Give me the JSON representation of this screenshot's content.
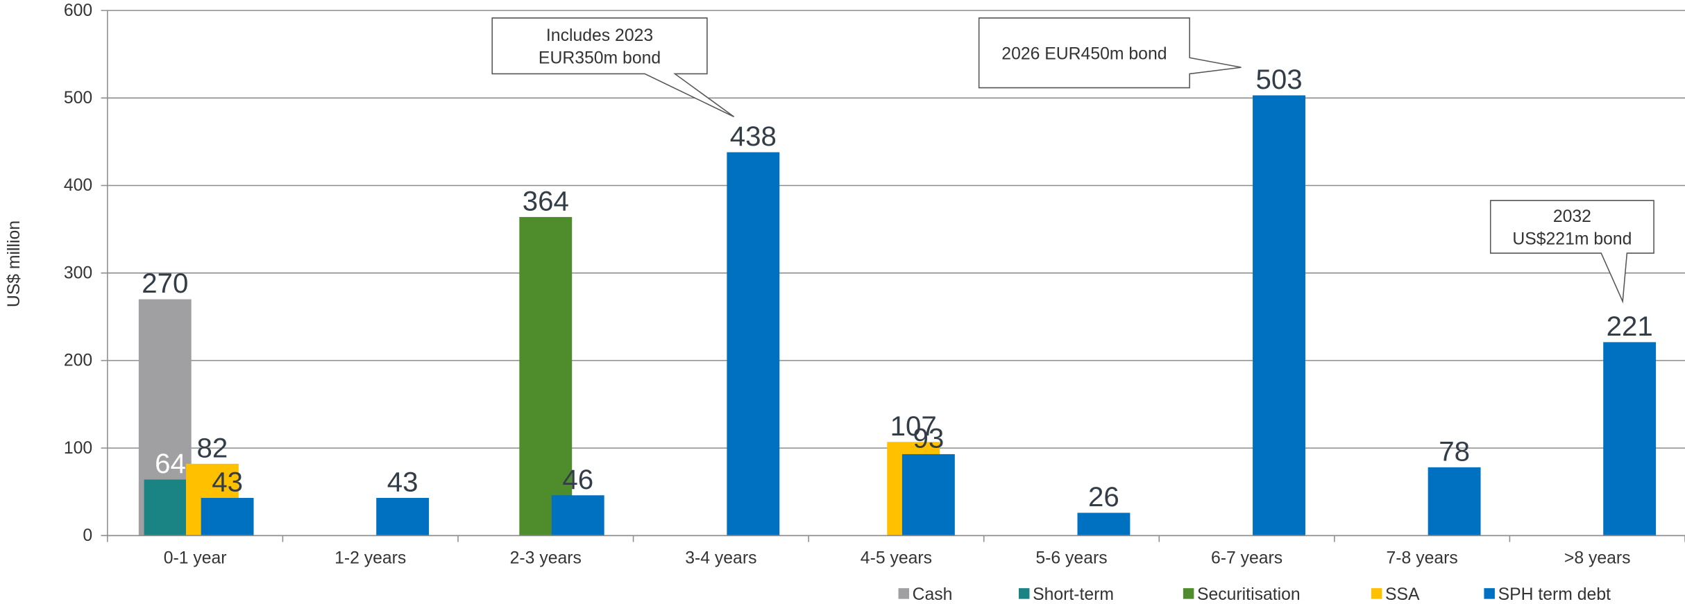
{
  "chart_data": {
    "type": "bar",
    "y_label": "US$ million",
    "categories": [
      "0-1 year",
      "1-2 years",
      "2-3 years",
      "3-4 years",
      "4-5 years",
      "5-6 years",
      "6-7 years",
      "7-8 years",
      ">8 years"
    ],
    "series": [
      {
        "name": "Cash",
        "color": "#a0a0a2",
        "values": [
          270,
          null,
          null,
          null,
          null,
          null,
          null,
          null,
          null
        ]
      },
      {
        "name": "Short-term",
        "color": "#1a8384",
        "label_color": "#ffffff",
        "values": [
          64,
          null,
          null,
          null,
          null,
          null,
          null,
          null,
          null
        ]
      },
      {
        "name": "Securitisation",
        "color": "#4e8c2c",
        "values": [
          null,
          null,
          364,
          null,
          null,
          null,
          null,
          null,
          null
        ]
      },
      {
        "name": "SSA",
        "color": "#ffc000",
        "values": [
          82,
          null,
          null,
          null,
          107,
          null,
          null,
          null,
          null
        ]
      },
      {
        "name": "SPH term debt",
        "color": "#0070c0",
        "values": [
          43,
          43,
          46,
          438,
          93,
          26,
          503,
          78,
          221
        ]
      }
    ],
    "ylim": [
      0,
      600
    ],
    "yticks": [
      0,
      100,
      200,
      300,
      400,
      500,
      600
    ],
    "grid": true,
    "legend": "bottom-right",
    "annotations": [
      {
        "lines": [
          "Includes 2023",
          "EUR350m bond"
        ]
      },
      {
        "lines": [
          "2026 EUR450m bond"
        ]
      },
      {
        "lines": [
          "2032",
          "US$221m bond"
        ]
      }
    ]
  }
}
